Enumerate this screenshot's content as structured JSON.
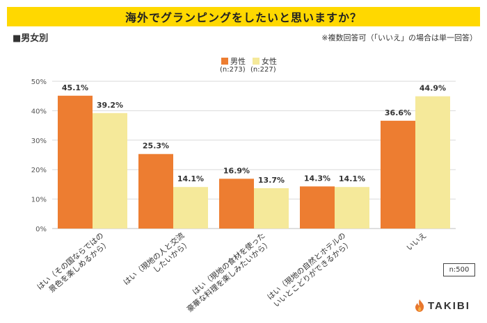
{
  "header": {
    "title": "海外でグランピングをしたいと思いますか？"
  },
  "subhead": "■男女別",
  "note": "※複数回答可（「いいえ」の場合は単一回答）",
  "sample": "n:500",
  "brand": {
    "name": "TAKIBI",
    "flame_color": "#E8772E"
  },
  "legend": {
    "male": {
      "label": "男性",
      "n": "(n:273)"
    },
    "female": {
      "label": "女性",
      "n": "(n:227)"
    }
  },
  "colors": {
    "male": "#ED7D31",
    "female": "#F5E99A",
    "grid": "#D9D9D9"
  },
  "chart_data": {
    "type": "bar",
    "categories": [
      [
        "はい（その国ならではの",
        "景色を楽しめるから）"
      ],
      [
        "はい（現地の人と交流",
        "したいから）"
      ],
      [
        "はい（現地の食材を使った",
        "豪華な料理を楽しみたいから）"
      ],
      [
        "はい（現地の自然とホテルの",
        "いいとこどりができるから）"
      ],
      [
        "いいえ"
      ]
    ],
    "series": [
      {
        "name": "男性",
        "values": [
          45.1,
          25.3,
          16.9,
          14.3,
          36.6
        ]
      },
      {
        "name": "女性",
        "values": [
          39.2,
          14.1,
          13.7,
          14.1,
          44.9
        ]
      }
    ],
    "data_labels": [
      [
        "45.1%",
        "25.3%",
        "16.9%",
        "14.3%",
        "36.6%"
      ],
      [
        "39.2%",
        "14.1%",
        "13.7%",
        "14.1%",
        "44.9%"
      ]
    ],
    "ylim": [
      0,
      50
    ],
    "yticks": [
      0,
      10,
      20,
      30,
      40,
      50
    ],
    "ytick_labels": [
      "0%",
      "10%",
      "20%",
      "30%",
      "40%",
      "50%"
    ],
    "title": "海外でグランピングをしたいと思いますか？",
    "grid": true
  }
}
